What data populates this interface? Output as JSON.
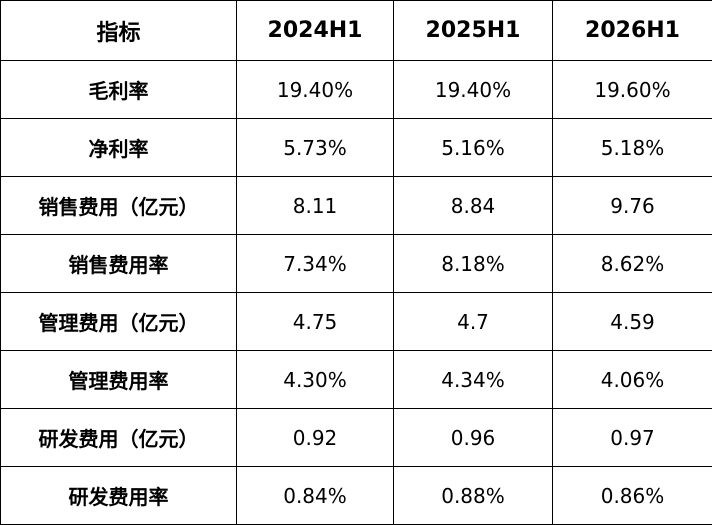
{
  "table": {
    "headers": [
      "指标",
      "2024H1",
      "2025H1",
      "2026H1"
    ],
    "rows": [
      {
        "label": "毛利率",
        "values": [
          "19.40%",
          "19.40%",
          "19.60%"
        ]
      },
      {
        "label": "净利率",
        "values": [
          "5.73%",
          "5.16%",
          "5.18%"
        ]
      },
      {
        "label": "销售费用（亿元）",
        "values": [
          "8.11",
          "8.84",
          "9.76"
        ]
      },
      {
        "label": "销售费用率",
        "values": [
          "7.34%",
          "8.18%",
          "8.62%"
        ]
      },
      {
        "label": "管理费用（亿元）",
        "values": [
          "4.75",
          "4.7",
          "4.59"
        ]
      },
      {
        "label": "管理费用率",
        "values": [
          "4.30%",
          "4.34%",
          "4.06%"
        ]
      },
      {
        "label": "研发费用（亿元）",
        "values": [
          "0.92",
          "0.96",
          "0.97"
        ]
      },
      {
        "label": "研发费用率",
        "values": [
          "0.84%",
          "0.88%",
          "0.86%"
        ]
      }
    ]
  }
}
